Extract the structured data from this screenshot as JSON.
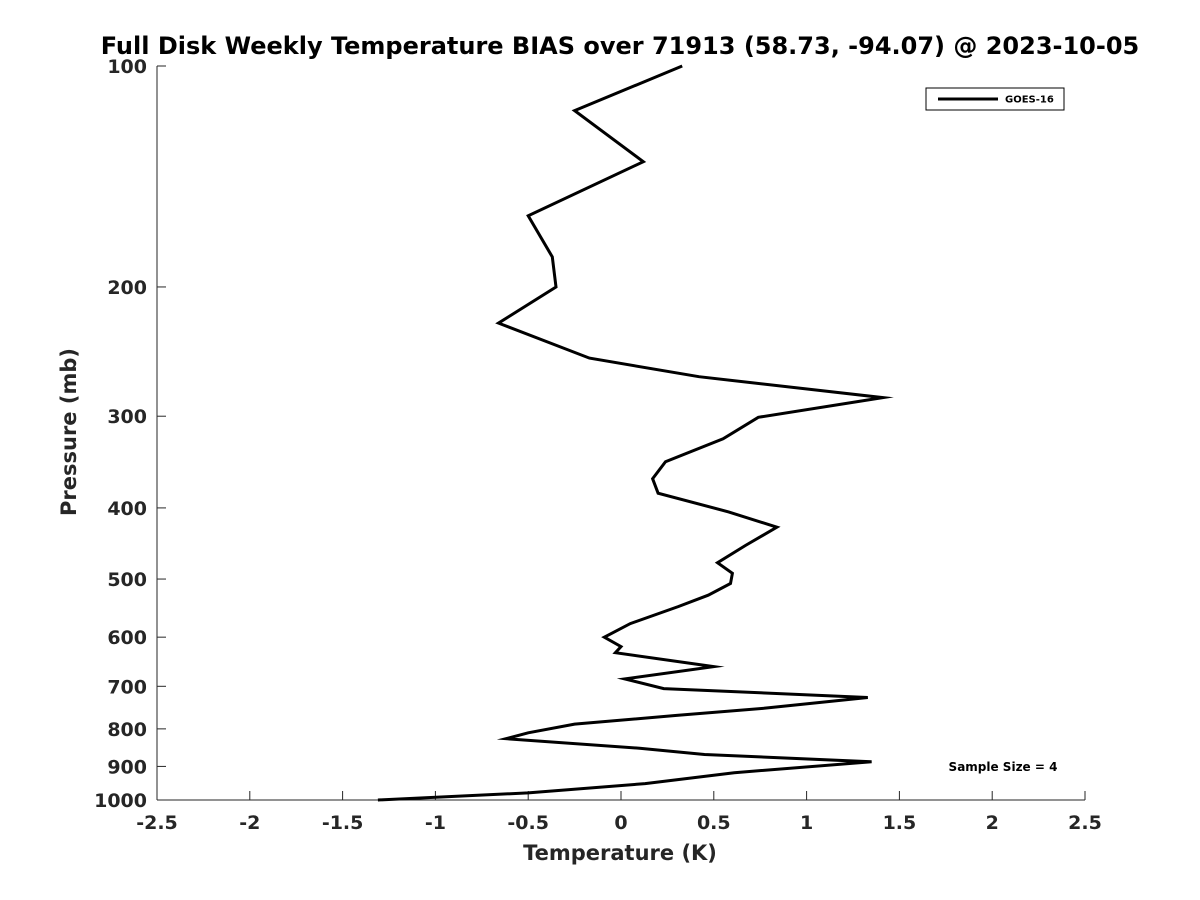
{
  "chart_data": {
    "type": "line",
    "title": "Full Disk Weekly Temperature BIAS over 71913 (58.73, -94.07) @ 2023-10-05",
    "xlabel": "Temperature (K)",
    "ylabel": "Pressure (mb)",
    "xlim": [
      -2.5,
      2.5
    ],
    "ylim": [
      1000,
      100
    ],
    "yscale": "log",
    "y_reversed": true,
    "grid": false,
    "legend": "top-right",
    "x_ticks": [
      -2.5,
      -2,
      -1.5,
      -1,
      -0.5,
      0,
      0.5,
      1,
      1.5,
      2,
      2.5
    ],
    "x_tick_labels": [
      "-2.5",
      "-2",
      "-1.5",
      "-1",
      "-0.5",
      "0",
      "0.5",
      "1",
      "1.5",
      "2",
      "2.5"
    ],
    "y_ticks": [
      100,
      200,
      300,
      400,
      500,
      600,
      700,
      800,
      900,
      1000
    ],
    "y_tick_labels": [
      "100",
      "200",
      "300",
      "400",
      "500",
      "600",
      "700",
      "800",
      "900",
      "1000"
    ],
    "series": [
      {
        "name": "GOES-16",
        "color": "#000000",
        "points": [
          [
            0.33,
            100
          ],
          [
            -0.25,
            115
          ],
          [
            0.12,
            135
          ],
          [
            -0.5,
            160
          ],
          [
            -0.37,
            182
          ],
          [
            -0.35,
            200
          ],
          [
            -0.66,
            224
          ],
          [
            -0.17,
            250
          ],
          [
            0.42,
            265
          ],
          [
            1.41,
            283
          ],
          [
            0.74,
            301
          ],
          [
            0.55,
            322
          ],
          [
            0.24,
            346
          ],
          [
            0.17,
            365
          ],
          [
            0.2,
            382
          ],
          [
            0.58,
            405
          ],
          [
            0.84,
            425
          ],
          [
            0.67,
            450
          ],
          [
            0.52,
            475
          ],
          [
            0.6,
            491
          ],
          [
            0.59,
            507
          ],
          [
            0.47,
            526
          ],
          [
            0.31,
            545
          ],
          [
            0.05,
            575
          ],
          [
            -0.09,
            600
          ],
          [
            0.0,
            618
          ],
          [
            -0.03,
            630
          ],
          [
            0.5,
            658
          ],
          [
            0.02,
            684
          ],
          [
            0.23,
            705
          ],
          [
            1.33,
            725
          ],
          [
            0.77,
            750
          ],
          [
            0.3,
            767
          ],
          [
            -0.25,
            788
          ],
          [
            -0.5,
            810
          ],
          [
            -0.62,
            825
          ],
          [
            0.1,
            850
          ],
          [
            0.45,
            867
          ],
          [
            1.35,
            887
          ],
          [
            0.61,
            918
          ],
          [
            0.13,
            950
          ],
          [
            -0.5,
            978
          ],
          [
            -1.31,
            1000
          ]
        ]
      }
    ],
    "annotations": [
      "Sample Size = 4"
    ]
  }
}
